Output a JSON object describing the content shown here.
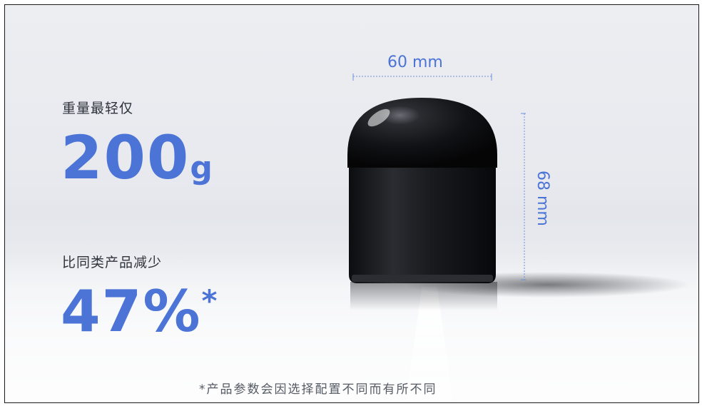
{
  "weight": {
    "label": "重量最轻仅",
    "value": "200",
    "unit": "g"
  },
  "reduction": {
    "label": "比同类产品减少",
    "value": "47%",
    "marker": "*"
  },
  "dimensions": {
    "width": "60 mm",
    "height": "68 mm"
  },
  "footnote": "*产品参数会因选择配置不同而有所不同",
  "colors": {
    "accent": "#4b74d6",
    "product": "#141518",
    "background": "#e8eaef"
  }
}
